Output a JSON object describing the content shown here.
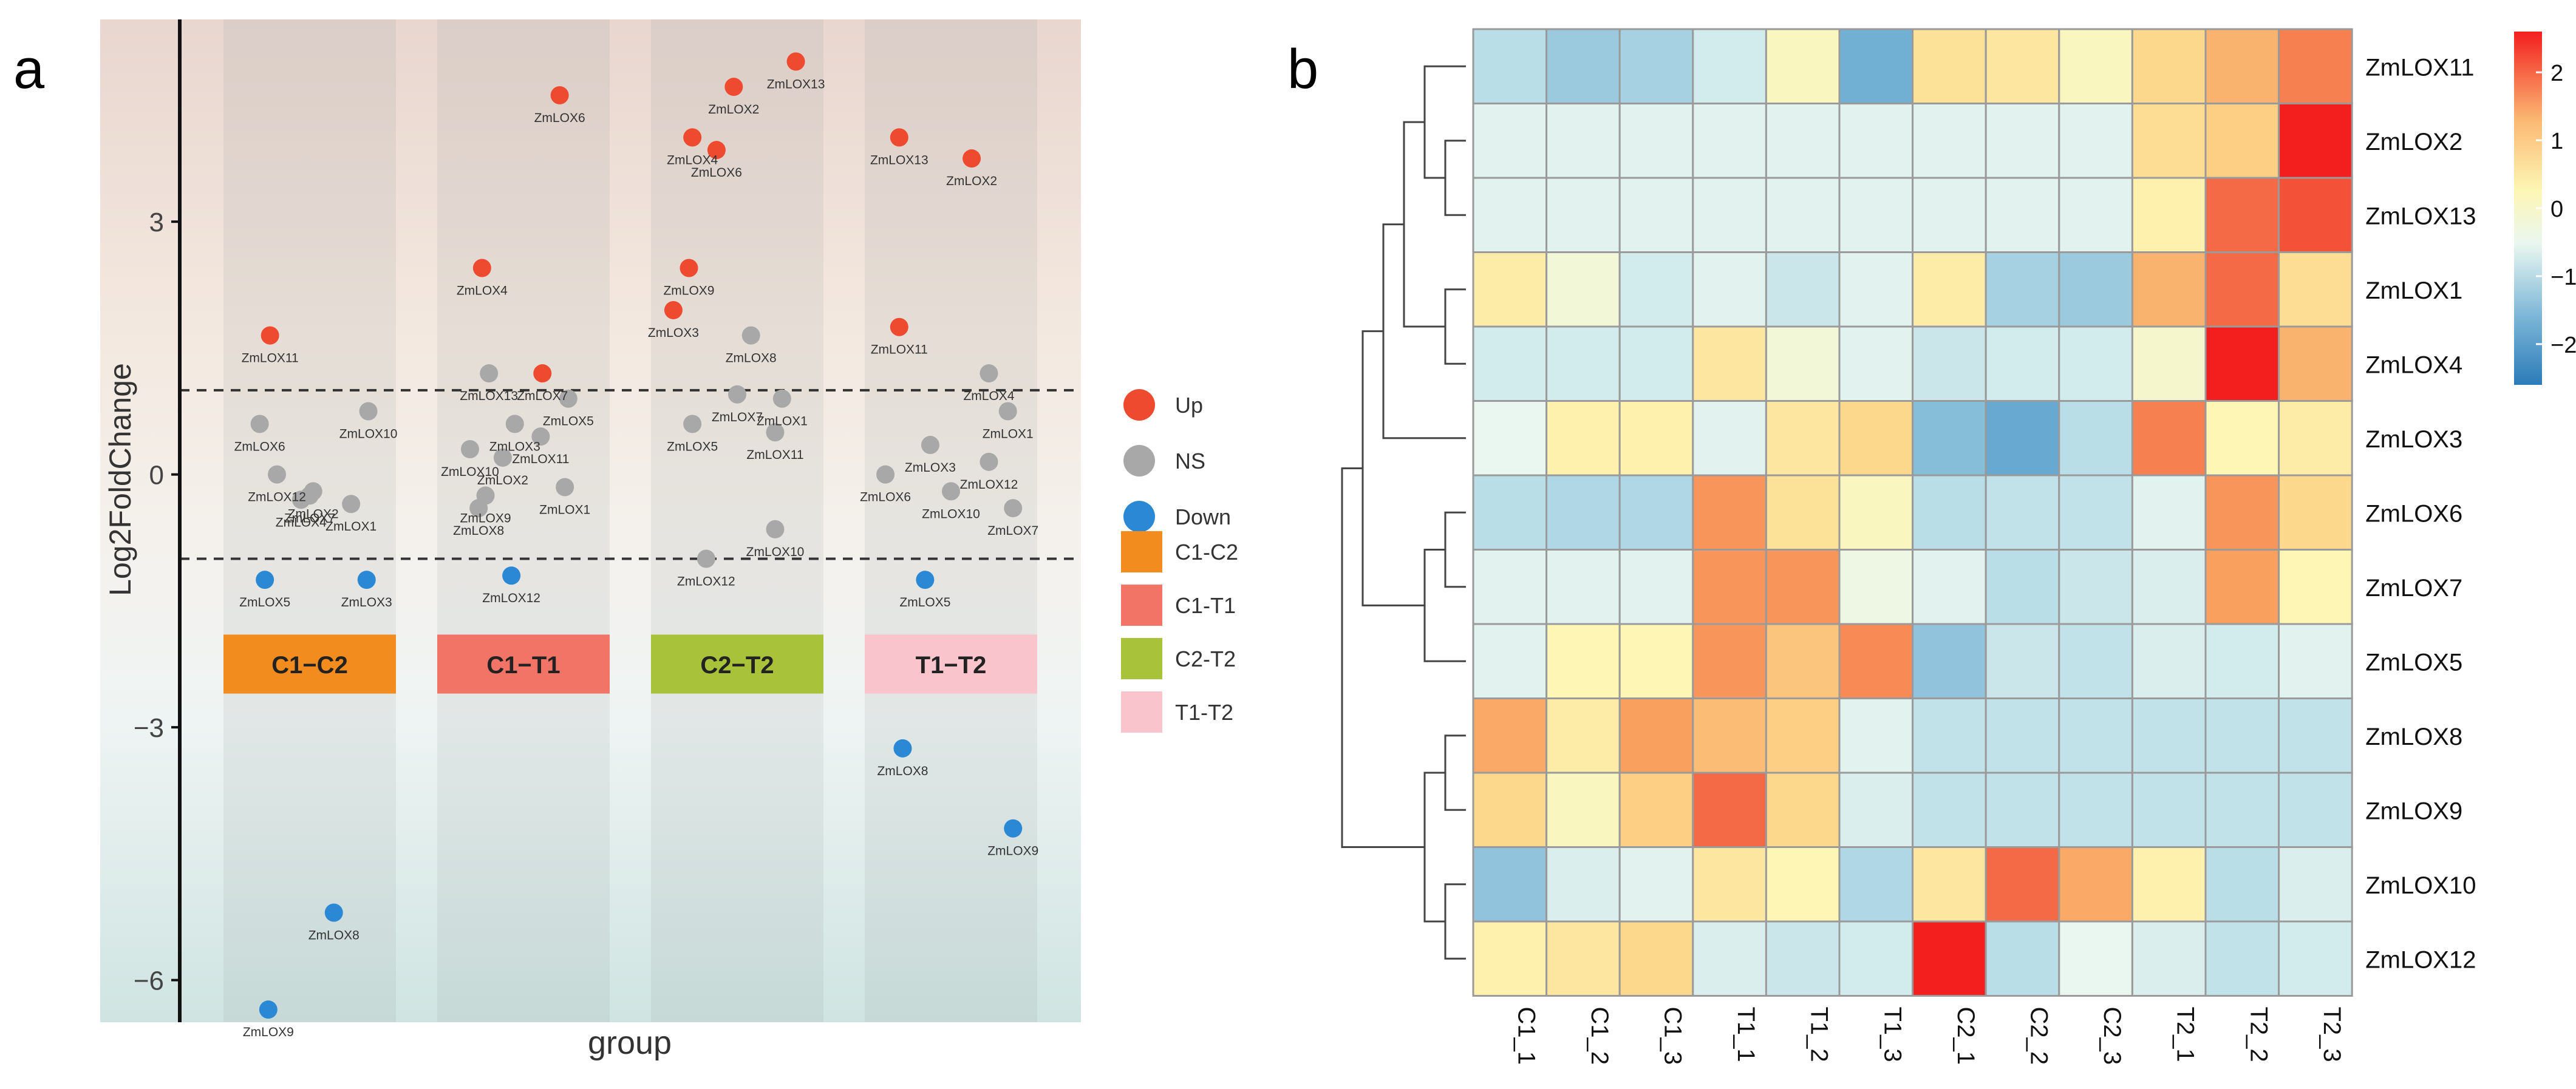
{
  "panel_a_label": "a",
  "panel_b_label": "b",
  "chart_data": [
    {
      "type": "scatter",
      "panel": "a",
      "xlabel": "group",
      "ylabel": "Log2FoldChange",
      "ylim": [
        -6.5,
        5.4
      ],
      "yticks": [
        3,
        0,
        -3,
        -6
      ],
      "threshold_lines": [
        1,
        -1
      ],
      "groups": [
        "C1-C2",
        "C1-T1",
        "C2-T2",
        "T1-T2"
      ],
      "legend_status_title": "",
      "legend_status": [
        {
          "key": "Up",
          "label": "Up",
          "color": "#ee4a30"
        },
        {
          "key": "NS",
          "label": "NS",
          "color": "#a8a8a8"
        },
        {
          "key": "Down",
          "label": "Down",
          "color": "#2a88d4"
        }
      ],
      "legend_group": [
        {
          "label": "C1-C2",
          "color": "#f28c1e"
        },
        {
          "label": "C1-T1",
          "color": "#f27466"
        },
        {
          "label": "C2-T2",
          "color": "#a8c23a"
        },
        {
          "label": "T1-T2",
          "color": "#f9c4cc"
        }
      ],
      "group_box_labels": [
        "C1−C2",
        "C1−T1",
        "C2−T2",
        "T1−T2"
      ],
      "points": [
        {
          "group": 0,
          "offset": 0.27,
          "y": 1.65,
          "label": "ZmLOX11",
          "status": "Up"
        },
        {
          "group": 0,
          "offset": 0.84,
          "y": 0.75,
          "label": "ZmLOX10",
          "status": "NS"
        },
        {
          "group": 0,
          "offset": 0.21,
          "y": 0.6,
          "label": "ZmLOX6",
          "status": "NS"
        },
        {
          "group": 0,
          "offset": 0.31,
          "y": 0.0,
          "label": "ZmLOX12",
          "status": "NS"
        },
        {
          "group": 0,
          "offset": 0.52,
          "y": -0.2,
          "label": "ZmLOX2",
          "status": "NS"
        },
        {
          "group": 0,
          "offset": 0.45,
          "y": -0.3,
          "label": "ZmLOX4",
          "status": "NS"
        },
        {
          "group": 0,
          "offset": 0.74,
          "y": -0.35,
          "label": "ZmLOX1",
          "status": "NS"
        },
        {
          "group": 0,
          "offset": 0.5,
          "y": -0.25,
          "label": "ZmLOX7",
          "status": "NS"
        },
        {
          "group": 0,
          "offset": 0.24,
          "y": -1.25,
          "label": "ZmLOX5",
          "status": "Down"
        },
        {
          "group": 0,
          "offset": 0.83,
          "y": -1.25,
          "label": "ZmLOX3",
          "status": "Down"
        },
        {
          "group": 0,
          "offset": 0.64,
          "y": -5.2,
          "label": "ZmLOX8",
          "status": "Down"
        },
        {
          "group": 0,
          "offset": 0.26,
          "y": -6.35,
          "label": "ZmLOX9",
          "status": "Down"
        },
        {
          "group": 1,
          "offset": 0.71,
          "y": 4.5,
          "label": "ZmLOX6",
          "status": "Up"
        },
        {
          "group": 1,
          "offset": 0.26,
          "y": 2.45,
          "label": "ZmLOX4",
          "status": "Up"
        },
        {
          "group": 1,
          "offset": 0.61,
          "y": 1.2,
          "label": "ZmLOX7",
          "status": "Up"
        },
        {
          "group": 1,
          "offset": 0.3,
          "y": 1.2,
          "label": "ZmLOX13",
          "status": "NS"
        },
        {
          "group": 1,
          "offset": 0.76,
          "y": 0.9,
          "label": "ZmLOX5",
          "status": "NS"
        },
        {
          "group": 1,
          "offset": 0.45,
          "y": 0.6,
          "label": "ZmLOX3",
          "status": "NS"
        },
        {
          "group": 1,
          "offset": 0.6,
          "y": 0.45,
          "label": "ZmLOX11",
          "status": "NS"
        },
        {
          "group": 1,
          "offset": 0.19,
          "y": 0.3,
          "label": "ZmLOX10",
          "status": "NS"
        },
        {
          "group": 1,
          "offset": 0.38,
          "y": 0.2,
          "label": "ZmLOX2",
          "status": "NS"
        },
        {
          "group": 1,
          "offset": 0.28,
          "y": -0.25,
          "label": "ZmLOX9",
          "status": "NS"
        },
        {
          "group": 1,
          "offset": 0.24,
          "y": -0.4,
          "label": "ZmLOX8",
          "status": "NS"
        },
        {
          "group": 1,
          "offset": 0.74,
          "y": -0.15,
          "label": "ZmLOX1",
          "status": "NS"
        },
        {
          "group": 1,
          "offset": 0.43,
          "y": -1.2,
          "label": "ZmLOX12",
          "status": "Down"
        },
        {
          "group": 2,
          "offset": 0.84,
          "y": 4.9,
          "label": "ZmLOX13",
          "status": "Up"
        },
        {
          "group": 2,
          "offset": 0.48,
          "y": 4.6,
          "label": "ZmLOX2",
          "status": "Up"
        },
        {
          "group": 2,
          "offset": 0.24,
          "y": 4.0,
          "label": "ZmLOX4",
          "status": "Up"
        },
        {
          "group": 2,
          "offset": 0.38,
          "y": 3.85,
          "label": "ZmLOX6",
          "status": "Up"
        },
        {
          "group": 2,
          "offset": 0.22,
          "y": 2.45,
          "label": "ZmLOX9",
          "status": "Up"
        },
        {
          "group": 2,
          "offset": 0.13,
          "y": 1.95,
          "label": "ZmLOX3",
          "status": "Up"
        },
        {
          "group": 2,
          "offset": 0.58,
          "y": 1.65,
          "label": "ZmLOX8",
          "status": "NS"
        },
        {
          "group": 2,
          "offset": 0.5,
          "y": 0.95,
          "label": "ZmLOX7",
          "status": "NS"
        },
        {
          "group": 2,
          "offset": 0.76,
          "y": 0.9,
          "label": "ZmLOX1",
          "status": "NS"
        },
        {
          "group": 2,
          "offset": 0.24,
          "y": 0.6,
          "label": "ZmLOX5",
          "status": "NS"
        },
        {
          "group": 2,
          "offset": 0.72,
          "y": 0.5,
          "label": "ZmLOX11",
          "status": "NS"
        },
        {
          "group": 2,
          "offset": 0.72,
          "y": -0.65,
          "label": "ZmLOX10",
          "status": "NS"
        },
        {
          "group": 2,
          "offset": 0.32,
          "y": -1.0,
          "label": "ZmLOX12",
          "status": "NS"
        },
        {
          "group": 3,
          "offset": 0.2,
          "y": 4.0,
          "label": "ZmLOX13",
          "status": "Up"
        },
        {
          "group": 3,
          "offset": 0.62,
          "y": 3.75,
          "label": "ZmLOX2",
          "status": "Up"
        },
        {
          "group": 3,
          "offset": 0.2,
          "y": 1.75,
          "label": "ZmLOX11",
          "status": "Up"
        },
        {
          "group": 3,
          "offset": 0.72,
          "y": 1.2,
          "label": "ZmLOX4",
          "status": "NS"
        },
        {
          "group": 3,
          "offset": 0.83,
          "y": 0.75,
          "label": "ZmLOX1",
          "status": "NS"
        },
        {
          "group": 3,
          "offset": 0.38,
          "y": 0.35,
          "label": "ZmLOX3",
          "status": "NS"
        },
        {
          "group": 3,
          "offset": 0.72,
          "y": 0.15,
          "label": "ZmLOX12",
          "status": "NS"
        },
        {
          "group": 3,
          "offset": 0.12,
          "y": 0.0,
          "label": "ZmLOX6",
          "status": "NS"
        },
        {
          "group": 3,
          "offset": 0.5,
          "y": -0.2,
          "label": "ZmLOX10",
          "status": "NS"
        },
        {
          "group": 3,
          "offset": 0.86,
          "y": -0.4,
          "label": "ZmLOX7",
          "status": "NS"
        },
        {
          "group": 3,
          "offset": 0.35,
          "y": -1.25,
          "label": "ZmLOX5",
          "status": "Down"
        },
        {
          "group": 3,
          "offset": 0.22,
          "y": -3.25,
          "label": "ZmLOX8",
          "status": "Down"
        },
        {
          "group": 3,
          "offset": 0.86,
          "y": -4.2,
          "label": "ZmLOX9",
          "status": "Down"
        }
      ]
    },
    {
      "type": "heatmap",
      "panel": "b",
      "columns": [
        "C1_1",
        "C1_2",
        "C1_3",
        "T1_1",
        "T1_2",
        "T1_3",
        "C2_1",
        "C2_2",
        "C2_3",
        "T2_1",
        "T2_2",
        "T2_3"
      ],
      "rows": [
        "ZmLOX11",
        "ZmLOX2",
        "ZmLOX13",
        "ZmLOX1",
        "ZmLOX4",
        "ZmLOX3",
        "ZmLOX6",
        "ZmLOX7",
        "ZmLOX5",
        "ZmLOX8",
        "ZmLOX9",
        "ZmLOX10",
        "ZmLOX12"
      ],
      "values": [
        [
          -0.8,
          -1.1,
          -1.0,
          -0.5,
          0.2,
          -1.5,
          0.7,
          0.6,
          0.2,
          0.9,
          1.3,
          1.8
        ],
        [
          -0.3,
          -0.3,
          -0.3,
          -0.3,
          -0.3,
          -0.3,
          -0.3,
          -0.3,
          -0.3,
          0.8,
          1.0,
          2.6
        ],
        [
          -0.3,
          -0.3,
          -0.3,
          -0.3,
          -0.3,
          -0.3,
          -0.3,
          -0.3,
          -0.3,
          0.4,
          2.0,
          2.2
        ],
        [
          0.5,
          0.0,
          -0.5,
          -0.3,
          -0.6,
          -0.3,
          0.5,
          -1.0,
          -1.1,
          1.3,
          2.0,
          0.8
        ],
        [
          -0.5,
          -0.5,
          -0.5,
          0.6,
          0.0,
          -0.3,
          -0.6,
          -0.5,
          -0.5,
          0.1,
          2.6,
          1.3
        ],
        [
          -0.2,
          0.4,
          0.4,
          -0.3,
          0.6,
          0.9,
          -1.3,
          -1.6,
          -0.8,
          1.8,
          0.3,
          0.5
        ],
        [
          -0.8,
          -0.9,
          -0.9,
          1.6,
          0.7,
          0.2,
          -0.8,
          -0.7,
          -0.7,
          -0.3,
          1.6,
          0.9
        ],
        [
          -0.3,
          -0.3,
          -0.3,
          1.6,
          1.6,
          -0.1,
          -0.3,
          -0.8,
          -0.6,
          -0.4,
          1.5,
          0.3
        ],
        [
          -0.3,
          0.3,
          0.3,
          1.6,
          1.1,
          1.7,
          -1.2,
          -0.6,
          -0.7,
          -0.4,
          -0.5,
          -0.3
        ],
        [
          1.4,
          0.5,
          1.5,
          1.2,
          1.0,
          -0.3,
          -0.7,
          -0.7,
          -0.7,
          -0.7,
          -0.7,
          -0.7
        ],
        [
          0.9,
          0.2,
          1.0,
          2.0,
          0.9,
          -0.4,
          -0.7,
          -0.7,
          -0.7,
          -0.7,
          -0.7,
          -0.7
        ],
        [
          -1.2,
          -0.4,
          -0.3,
          0.6,
          0.3,
          -0.9,
          0.6,
          2.0,
          1.4,
          0.4,
          -0.8,
          -0.4
        ],
        [
          0.4,
          0.6,
          0.9,
          -0.4,
          -0.6,
          -0.5,
          2.6,
          -0.8,
          -0.2,
          -0.4,
          -0.7,
          -0.5
        ]
      ],
      "colorbar_ticks": [
        "2",
        "1",
        "0",
        "−1",
        "−2"
      ],
      "colorbar_tick_values": [
        2,
        1,
        0,
        -1,
        -2
      ],
      "color_scale": [
        "#2b7bb9",
        "#eaf7f0",
        "#fdf6b4",
        "#f31f1f"
      ],
      "row_dendrogram": "clustered",
      "row_clusters": [
        {
          "children": [
            [
              {
                "children": [
                  [
                    {
                      "children": [
                        [
                          {
                            "children": [
                              [
                                {
                                  "children": [
                                    [
                                      0
                                    ],
                                    [
                                      {
                                        "children": [
                                          [
                                            1
                                          ],
                                          [
                                            2
                                          ]
                                        ]
                                      }
                                    ]
                                  ]
                                }
                              ],
                              [
                                {
                                  "children": [
                                    [
                                      3
                                    ],
                                    [
                                      4
                                    ]
                                  ]
                                }
                              ]
                            ]
                          }
                        ],
                        [
                          5
                        ]
                      ]
                    }
                  ],
                  [
                    {
                      "children": [
                        [
                          {
                            "children": [
                              [
                                6
                              ],
                              [
                                7
                              ]
                            ]
                          }
                        ],
                        [
                          8
                        ]
                      ]
                    }
                  ]
                ]
              }
            ],
            [
              {
                "children": [
                  [
                    {
                      "children": [
                        [
                          9
                        ],
                        [
                          10
                        ]
                      ]
                    }
                  ],
                  [
                    {
                      "children": [
                        [
                          11
                        ],
                        [
                          12
                        ]
                      ]
                    }
                  ]
                ]
              }
            ]
          ]
        }
      ]
    }
  ]
}
